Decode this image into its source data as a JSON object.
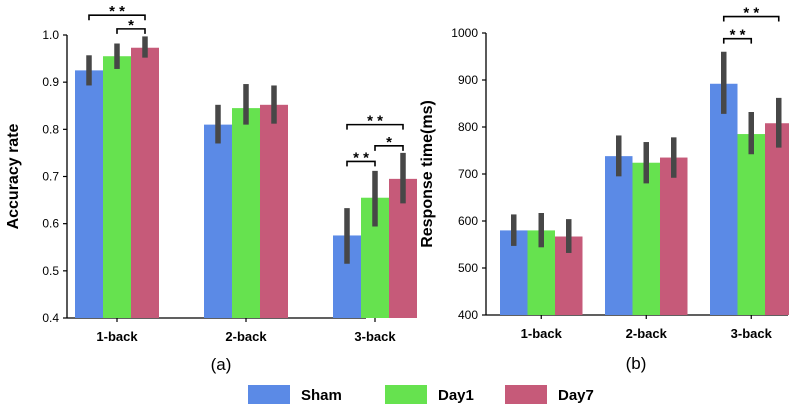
{
  "chart_data": [
    {
      "type": "bar",
      "panel_label": "(a)",
      "ylabel": "Accuracy rate",
      "ylim": [
        0.4,
        1.0
      ],
      "yticks": [
        "0.4",
        "0.5",
        "0.6",
        "0.7",
        "0.8",
        "0.9",
        "1.0"
      ],
      "categories": [
        "1-back",
        "2-back",
        "3-back"
      ],
      "series": [
        {
          "name": "Sham",
          "values": [
            0.925,
            0.81,
            0.575
          ],
          "err_low": [
            0.893,
            0.77,
            0.515
          ],
          "err_high": [
            0.957,
            0.852,
            0.633
          ]
        },
        {
          "name": "Day1",
          "values": [
            0.955,
            0.845,
            0.655
          ],
          "err_low": [
            0.928,
            0.81,
            0.594
          ],
          "err_high": [
            0.982,
            0.896,
            0.712
          ]
        },
        {
          "name": "Day7",
          "values": [
            0.973,
            0.852,
            0.695
          ],
          "err_low": [
            0.952,
            0.812,
            0.643
          ],
          "err_high": [
            0.997,
            0.893,
            0.75
          ]
        }
      ],
      "annotations": [
        {
          "label": "* *",
          "category": 0,
          "from": 0,
          "to": 2,
          "y": 1.042
        },
        {
          "label": "*",
          "category": 0,
          "from": 1,
          "to": 2,
          "y": 1.013
        },
        {
          "label": "* *",
          "category": 2,
          "from": 0,
          "to": 2,
          "y": 0.81
        },
        {
          "label": "*",
          "category": 2,
          "from": 1,
          "to": 2,
          "y": 0.765
        },
        {
          "label": "* *",
          "category": 2,
          "from": 0,
          "to": 1,
          "y": 0.732
        }
      ]
    },
    {
      "type": "bar",
      "panel_label": "(b)",
      "ylabel": "Response time(ms)",
      "ylim": [
        400,
        1000
      ],
      "yticks": [
        "400",
        "500",
        "600",
        "700",
        "800",
        "900",
        "1000"
      ],
      "categories": [
        "1-back",
        "2-back",
        "3-back"
      ],
      "series": [
        {
          "name": "Sham",
          "values": [
            580,
            738,
            892
          ],
          "err_low": [
            547,
            695,
            828
          ],
          "err_high": [
            614,
            782,
            960
          ]
        },
        {
          "name": "Day1",
          "values": [
            580,
            724,
            785
          ],
          "err_low": [
            544,
            680,
            742
          ],
          "err_high": [
            617,
            768,
            832
          ]
        },
        {
          "name": "Day7",
          "values": [
            567,
            735,
            808
          ],
          "err_low": [
            532,
            692,
            756
          ],
          "err_high": [
            604,
            778,
            862
          ]
        }
      ],
      "annotations": [
        {
          "label": "* *",
          "category": 2,
          "from": 0,
          "to": 2,
          "y": 1035
        },
        {
          "label": "* *",
          "category": 2,
          "from": 0,
          "to": 1,
          "y": 988
        }
      ]
    }
  ],
  "legend": [
    {
      "name": "Sham",
      "color": "#5b8ae6"
    },
    {
      "name": "Day1",
      "color": "#66e24f"
    },
    {
      "name": "Day7",
      "color": "#c65a79"
    }
  ],
  "errorbar_color": "#474747"
}
